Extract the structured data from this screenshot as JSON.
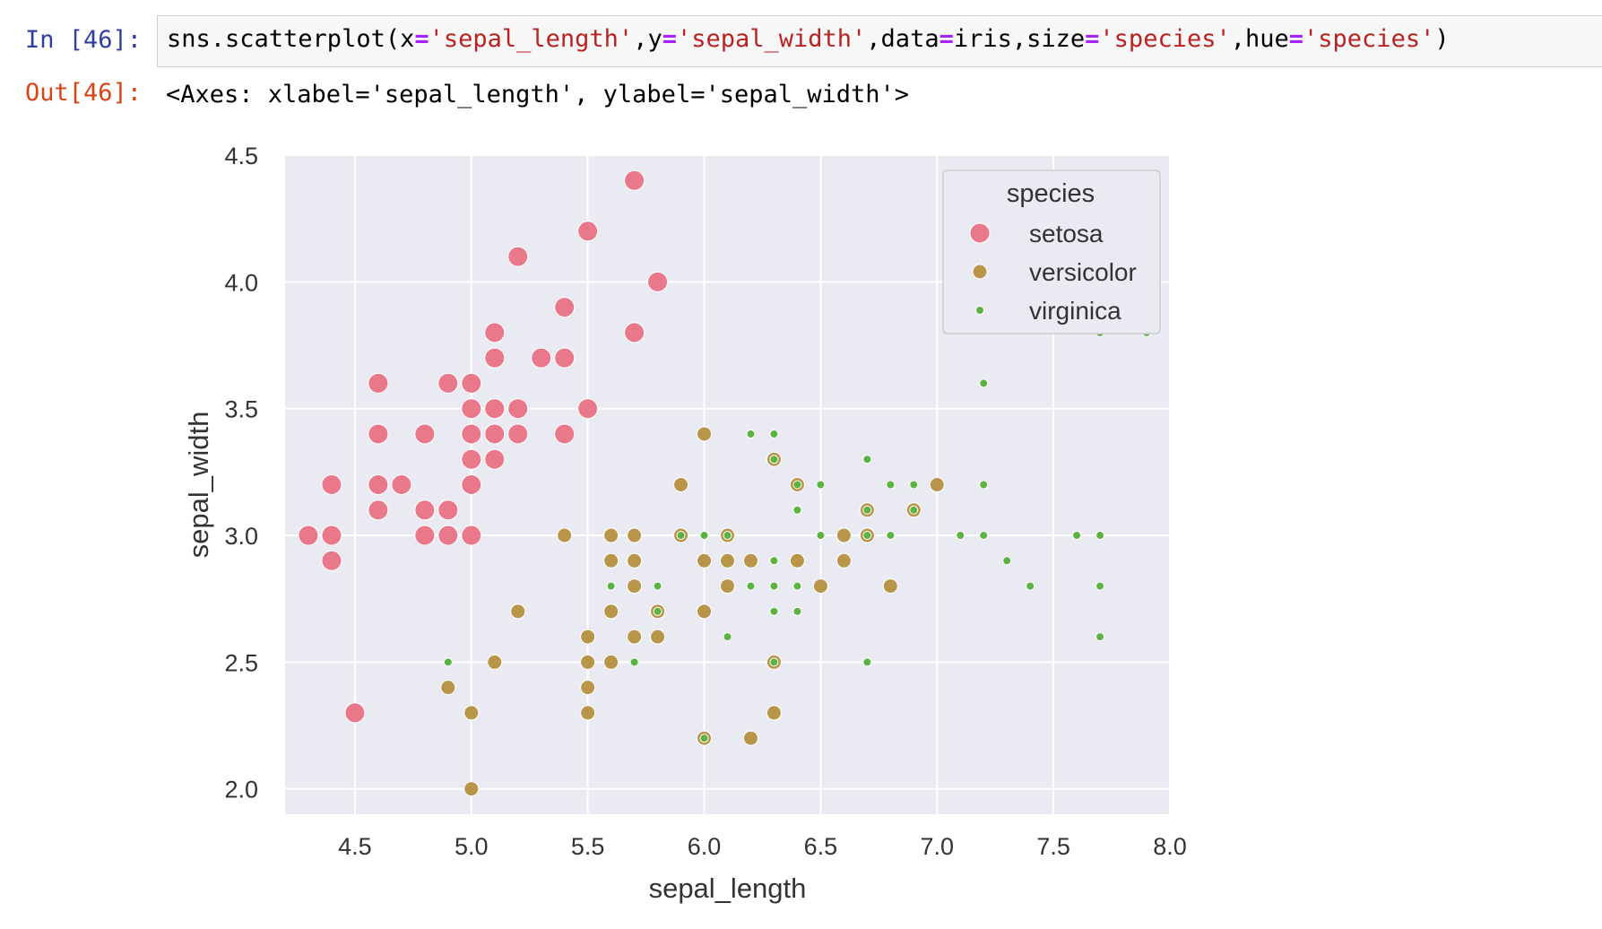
{
  "cell": {
    "in_prompt": "In [46]:",
    "out_prompt": "Out[46]:",
    "code_tokens": [
      {
        "t": "sns.scatterplot(x",
        "c": "plain"
      },
      {
        "t": "=",
        "c": "op"
      },
      {
        "t": "'sepal_length'",
        "c": "str"
      },
      {
        "t": ",y",
        "c": "plain"
      },
      {
        "t": "=",
        "c": "op"
      },
      {
        "t": "'sepal_width'",
        "c": "str"
      },
      {
        "t": ",data",
        "c": "plain"
      },
      {
        "t": "=",
        "c": "op"
      },
      {
        "t": "iris,size",
        "c": "plain"
      },
      {
        "t": "=",
        "c": "op"
      },
      {
        "t": "'species'",
        "c": "str"
      },
      {
        "t": ",hue",
        "c": "plain"
      },
      {
        "t": "=",
        "c": "op"
      },
      {
        "t": "'species'",
        "c": "str"
      },
      {
        "t": ")",
        "c": "plain"
      }
    ],
    "output_text": "<Axes: xlabel='sepal_length', ylabel='sepal_width'>"
  },
  "chart_data": {
    "type": "scatter",
    "title": "",
    "xlabel": "sepal_length",
    "ylabel": "sepal_width",
    "xlim": [
      4.2,
      8.0
    ],
    "ylim": [
      1.9,
      4.5
    ],
    "xticks": [
      "4.5",
      "5.0",
      "5.5",
      "6.0",
      "6.5",
      "7.0",
      "7.5",
      "8.0"
    ],
    "yticks": [
      "2.0",
      "2.5",
      "3.0",
      "3.5",
      "4.0",
      "4.5"
    ],
    "grid": true,
    "legend": {
      "title": "species",
      "position": "top-right"
    },
    "series": [
      {
        "name": "setosa",
        "color": "#e8788a",
        "marker_size": "large",
        "points": [
          [
            4.3,
            3.0
          ],
          [
            4.4,
            3.2
          ],
          [
            4.4,
            3.0
          ],
          [
            4.4,
            2.9
          ],
          [
            4.5,
            2.3
          ],
          [
            4.6,
            3.6
          ],
          [
            4.6,
            3.4
          ],
          [
            4.6,
            3.2
          ],
          [
            4.6,
            3.1
          ],
          [
            4.7,
            3.2
          ],
          [
            4.8,
            3.4
          ],
          [
            4.8,
            3.1
          ],
          [
            4.8,
            3.0
          ],
          [
            4.9,
            3.6
          ],
          [
            4.9,
            3.1
          ],
          [
            4.9,
            3.0
          ],
          [
            5.0,
            3.6
          ],
          [
            5.0,
            3.5
          ],
          [
            5.0,
            3.4
          ],
          [
            5.0,
            3.3
          ],
          [
            5.0,
            3.2
          ],
          [
            5.0,
            3.0
          ],
          [
            5.1,
            3.8
          ],
          [
            5.1,
            3.7
          ],
          [
            5.1,
            3.5
          ],
          [
            5.1,
            3.4
          ],
          [
            5.1,
            3.3
          ],
          [
            5.2,
            4.1
          ],
          [
            5.2,
            3.5
          ],
          [
            5.2,
            3.4
          ],
          [
            5.3,
            3.7
          ],
          [
            5.4,
            3.9
          ],
          [
            5.4,
            3.7
          ],
          [
            5.4,
            3.4
          ],
          [
            5.5,
            4.2
          ],
          [
            5.5,
            3.5
          ],
          [
            5.7,
            4.4
          ],
          [
            5.7,
            3.8
          ],
          [
            5.8,
            4.0
          ]
        ]
      },
      {
        "name": "versicolor",
        "color": "#b9954a",
        "marker_size": "medium",
        "points": [
          [
            4.9,
            2.4
          ],
          [
            5.0,
            2.3
          ],
          [
            5.0,
            2.0
          ],
          [
            5.1,
            2.5
          ],
          [
            5.2,
            2.7
          ],
          [
            5.4,
            3.0
          ],
          [
            5.5,
            2.6
          ],
          [
            5.5,
            2.5
          ],
          [
            5.5,
            2.4
          ],
          [
            5.5,
            2.3
          ],
          [
            5.6,
            3.0
          ],
          [
            5.6,
            2.9
          ],
          [
            5.6,
            2.7
          ],
          [
            5.6,
            2.5
          ],
          [
            5.7,
            3.0
          ],
          [
            5.7,
            2.9
          ],
          [
            5.7,
            2.8
          ],
          [
            5.7,
            2.6
          ],
          [
            5.8,
            2.7
          ],
          [
            5.8,
            2.6
          ],
          [
            5.9,
            3.2
          ],
          [
            5.9,
            3.0
          ],
          [
            6.0,
            3.4
          ],
          [
            6.0,
            2.9
          ],
          [
            6.0,
            2.7
          ],
          [
            6.0,
            2.2
          ],
          [
            6.1,
            3.0
          ],
          [
            6.1,
            2.9
          ],
          [
            6.1,
            2.8
          ],
          [
            6.2,
            2.9
          ],
          [
            6.2,
            2.2
          ],
          [
            6.3,
            3.3
          ],
          [
            6.3,
            2.5
          ],
          [
            6.3,
            2.3
          ],
          [
            6.4,
            3.2
          ],
          [
            6.4,
            2.9
          ],
          [
            6.5,
            2.8
          ],
          [
            6.6,
            3.0
          ],
          [
            6.6,
            2.9
          ],
          [
            6.7,
            3.1
          ],
          [
            6.7,
            3.0
          ],
          [
            6.8,
            2.8
          ],
          [
            6.9,
            3.1
          ],
          [
            7.0,
            3.2
          ]
        ]
      },
      {
        "name": "virginica",
        "color": "#5cb342",
        "marker_size": "small",
        "points": [
          [
            4.9,
            2.5
          ],
          [
            5.6,
            2.8
          ],
          [
            5.7,
            2.5
          ],
          [
            5.8,
            2.8
          ],
          [
            5.8,
            2.7
          ],
          [
            5.9,
            3.0
          ],
          [
            6.0,
            3.0
          ],
          [
            6.0,
            2.2
          ],
          [
            6.1,
            3.0
          ],
          [
            6.1,
            2.6
          ],
          [
            6.2,
            3.4
          ],
          [
            6.2,
            2.8
          ],
          [
            6.3,
            3.4
          ],
          [
            6.3,
            3.3
          ],
          [
            6.3,
            2.9
          ],
          [
            6.3,
            2.8
          ],
          [
            6.3,
            2.7
          ],
          [
            6.3,
            2.5
          ],
          [
            6.4,
            3.2
          ],
          [
            6.4,
            3.1
          ],
          [
            6.4,
            2.8
          ],
          [
            6.4,
            2.7
          ],
          [
            6.5,
            3.2
          ],
          [
            6.5,
            3.0
          ],
          [
            6.7,
            3.3
          ],
          [
            6.7,
            3.1
          ],
          [
            6.7,
            3.0
          ],
          [
            6.7,
            2.5
          ],
          [
            6.8,
            3.2
          ],
          [
            6.8,
            3.0
          ],
          [
            6.9,
            3.2
          ],
          [
            6.9,
            3.1
          ],
          [
            7.1,
            3.0
          ],
          [
            7.2,
            3.6
          ],
          [
            7.2,
            3.2
          ],
          [
            7.2,
            3.0
          ],
          [
            7.3,
            2.9
          ],
          [
            7.4,
            2.8
          ],
          [
            7.6,
            3.0
          ],
          [
            7.7,
            3.8
          ],
          [
            7.7,
            3.0
          ],
          [
            7.7,
            2.8
          ],
          [
            7.7,
            2.6
          ],
          [
            7.9,
            3.8
          ]
        ]
      }
    ]
  }
}
